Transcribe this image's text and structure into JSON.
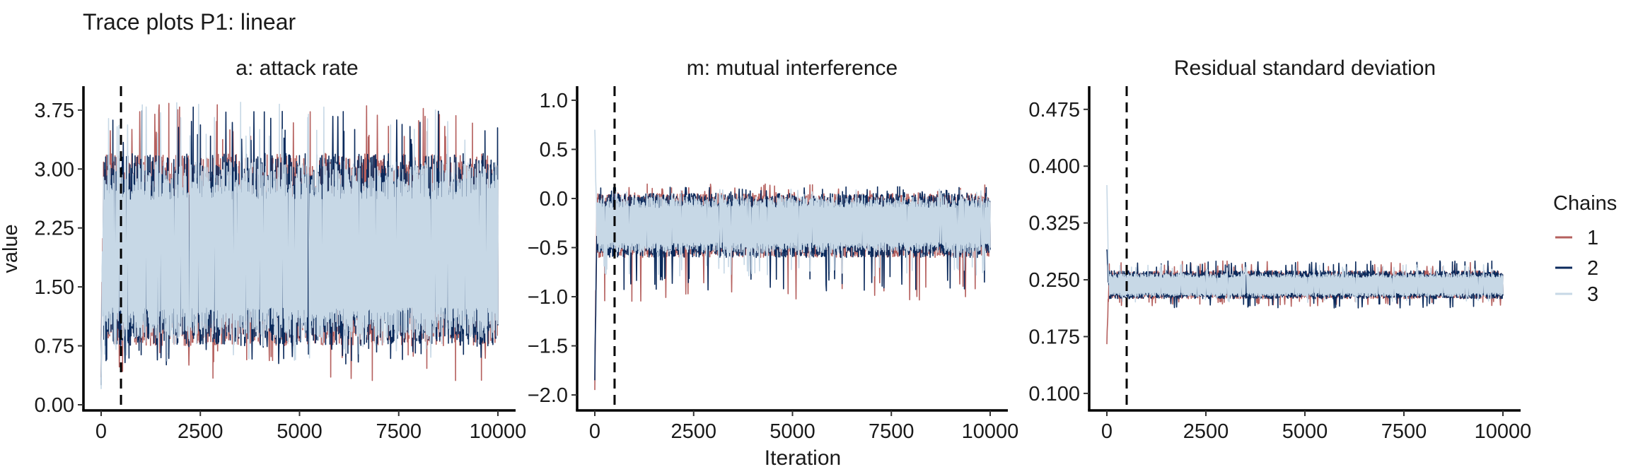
{
  "figure": {
    "title": "Trace plots P1: linear",
    "ylabel": "value",
    "xlabel": "Iteration"
  },
  "legend": {
    "title": "Chains",
    "placement": "right",
    "items": [
      {
        "label": "1",
        "color": "#b5605e"
      },
      {
        "label": "2",
        "color": "#0b2a5c"
      },
      {
        "label": "3",
        "color": "#c7d8e6"
      }
    ]
  },
  "chart_data": [
    {
      "type": "line",
      "title": "a: attack rate",
      "xlim": [
        0,
        10000
      ],
      "ylim": [
        0.0,
        4.0
      ],
      "xticks": [
        0,
        2500,
        5000,
        7500,
        10000
      ],
      "xtick_labels": [
        "0",
        "2500",
        "5000",
        "7500",
        "10000"
      ],
      "yticks": [
        0.0,
        0.75,
        1.5,
        2.25,
        3.0,
        3.75
      ],
      "ytick_labels": [
        "0.00",
        "0.75",
        "1.50",
        "2.25",
        "3.00",
        "3.75"
      ],
      "burnin": 500,
      "grid": false,
      "series": [
        {
          "name": "1",
          "color": "#b5605e",
          "center": 1.85,
          "upper": 3.2,
          "lower": 0.75,
          "extreme_high": 3.85,
          "extreme_low": 0.3,
          "start": 0.35
        },
        {
          "name": "2",
          "color": "#0b2a5c",
          "center": 1.85,
          "upper": 3.2,
          "lower": 0.75,
          "extreme_high": 3.8,
          "extreme_low": 0.5,
          "start": 0.25
        },
        {
          "name": "3",
          "color": "#c7d8e6",
          "center": 1.85,
          "upper": 3.1,
          "lower": 0.85,
          "extreme_high": 3.85,
          "extreme_low": 0.55,
          "start": 0.2
        }
      ]
    },
    {
      "type": "line",
      "title": "m: mutual interference",
      "xlim": [
        0,
        10000
      ],
      "ylim": [
        -2.1,
        1.1
      ],
      "xticks": [
        0,
        2500,
        5000,
        7500,
        10000
      ],
      "xtick_labels": [
        "0",
        "2500",
        "5000",
        "7500",
        "10000"
      ],
      "yticks": [
        -2.0,
        -1.5,
        -1.0,
        -0.5,
        0.0,
        0.5,
        1.0
      ],
      "ytick_labels": [
        "−2.0",
        "−1.5",
        "−1.0",
        "−0.5",
        "0.0",
        "0.5",
        "1.0"
      ],
      "burnin": 500,
      "grid": false,
      "series": [
        {
          "name": "1",
          "color": "#b5605e",
          "center": -0.28,
          "upper": 0.05,
          "lower": -0.6,
          "extreme_high": 0.15,
          "extreme_low": -1.05,
          "start": -1.95
        },
        {
          "name": "2",
          "color": "#0b2a5c",
          "center": -0.28,
          "upper": 0.05,
          "lower": -0.6,
          "extreme_high": 0.12,
          "extreme_low": -0.95,
          "start": -1.85
        },
        {
          "name": "3",
          "color": "#c7d8e6",
          "center": -0.28,
          "upper": 0.02,
          "lower": -0.55,
          "extreme_high": 0.1,
          "extreme_low": -0.8,
          "start": 0.7
        }
      ]
    },
    {
      "type": "line",
      "title": "Residual standard deviation",
      "xlim": [
        0,
        10000
      ],
      "ylim": [
        0.085,
        0.5
      ],
      "xticks": [
        0,
        2500,
        5000,
        7500,
        10000
      ],
      "xtick_labels": [
        "0",
        "2500",
        "5000",
        "7500",
        "10000"
      ],
      "yticks": [
        0.1,
        0.175,
        0.25,
        0.325,
        0.4,
        0.475
      ],
      "ytick_labels": [
        "0.100",
        "0.175",
        "0.250",
        "0.325",
        "0.400",
        "0.475"
      ],
      "burnin": 500,
      "grid": false,
      "series": [
        {
          "name": "1",
          "color": "#b5605e",
          "center": 0.242,
          "upper": 0.262,
          "lower": 0.225,
          "extreme_high": 0.275,
          "extreme_low": 0.215,
          "start": 0.165
        },
        {
          "name": "2",
          "color": "#0b2a5c",
          "center": 0.242,
          "upper": 0.262,
          "lower": 0.225,
          "extreme_high": 0.275,
          "extreme_low": 0.212,
          "start": 0.29
        },
        {
          "name": "3",
          "color": "#c7d8e6",
          "center": 0.242,
          "upper": 0.258,
          "lower": 0.228,
          "extreme_high": 0.27,
          "extreme_low": 0.22,
          "start": 0.375
        }
      ]
    }
  ]
}
